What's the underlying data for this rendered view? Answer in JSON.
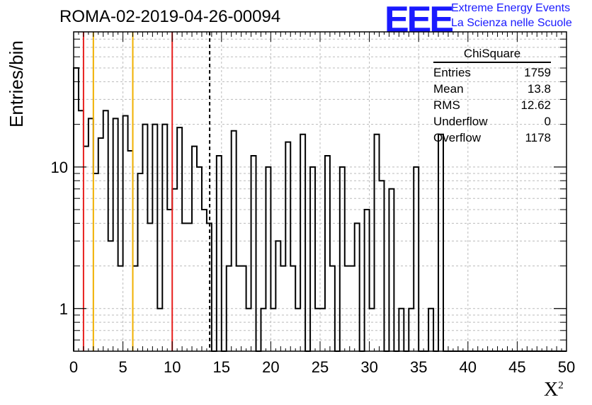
{
  "header": {
    "run_title": "ROMA-02-2019-04-26-00094",
    "logo_text": "EEE",
    "logo_line1": "Extreme Energy Events",
    "logo_line2": "La Scienza nelle Scuole"
  },
  "stats": {
    "title": "ChiSquare",
    "rows": [
      {
        "label": "Entries",
        "value": "1759"
      },
      {
        "label": "Mean",
        "value": "13.8"
      },
      {
        "label": "RMS",
        "value": "12.62"
      },
      {
        "label": "Underflow",
        "value": "0"
      },
      {
        "label": "Overflow",
        "value": "1178"
      }
    ]
  },
  "chart_data": {
    "type": "bar",
    "style": "step histogram",
    "title": "",
    "xlabel": "Χ²",
    "ylabel": "Entries/bin",
    "xlim": [
      0,
      50
    ],
    "ylim": [
      0.5,
      90
    ],
    "yscale": "log",
    "grid": true,
    "bin_width": 0.5,
    "bin_start": 0,
    "xticks": [
      "0",
      "5",
      "10",
      "15",
      "20",
      "25",
      "30",
      "35",
      "40",
      "45",
      "50"
    ],
    "yticks": [
      "1",
      "10"
    ],
    "values": [
      50,
      25,
      14,
      22,
      9,
      16,
      25,
      3,
      22,
      2,
      23,
      13,
      2,
      9,
      20,
      4,
      20,
      1,
      20,
      5,
      7,
      19,
      4,
      4,
      14,
      10,
      5,
      4,
      0,
      12,
      0,
      2,
      18,
      2,
      2,
      1,
      12,
      0,
      1,
      10,
      1,
      3,
      2,
      15,
      2,
      1,
      17,
      0,
      10,
      1,
      1,
      12,
      2,
      0,
      10,
      2,
      2,
      4,
      0,
      5,
      1,
      17,
      8,
      0,
      7,
      0,
      1,
      0,
      1,
      10,
      0,
      0,
      1,
      0,
      17,
      0,
      0,
      0,
      0,
      0,
      0,
      0,
      0,
      0,
      0,
      0,
      0,
      0,
      0,
      0,
      0,
      0,
      0,
      0,
      0,
      0,
      0,
      0,
      0,
      0
    ],
    "vertical_lines": [
      {
        "x": 1,
        "color": "#e8201e",
        "style": "solid"
      },
      {
        "x": 2,
        "color": "#f0b000",
        "style": "solid"
      },
      {
        "x": 6,
        "color": "#f0b000",
        "style": "solid"
      },
      {
        "x": 10,
        "color": "#e8201e",
        "style": "solid"
      },
      {
        "x": 13.8,
        "color": "#000000",
        "style": "dashed"
      }
    ],
    "legend_position": "top-right"
  },
  "colors": {
    "line": "#000000",
    "grid": "#bbbbbb",
    "logo_blue": "#1a1aff"
  }
}
